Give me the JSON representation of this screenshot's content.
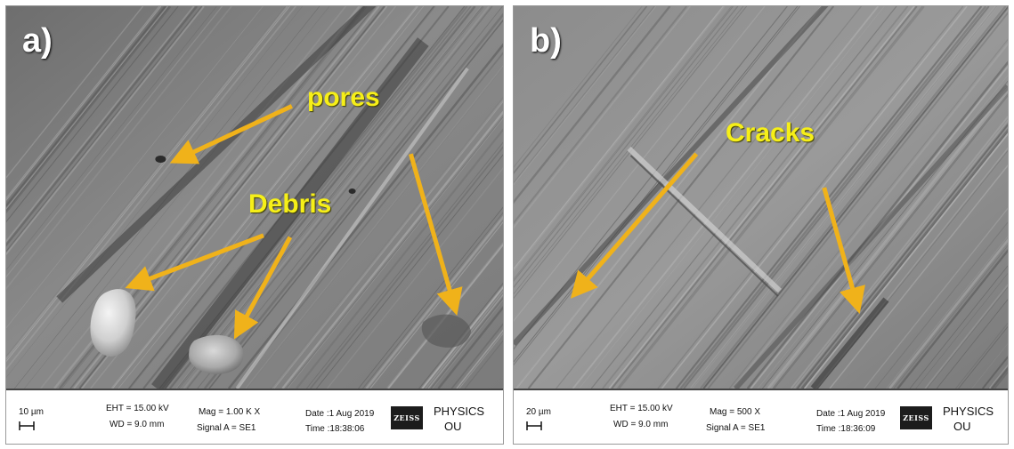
{
  "panels": [
    {
      "letter": "a)",
      "callouts": {
        "pores": "pores",
        "debris": "Debris"
      },
      "databar": {
        "scale": "10 µm",
        "eht": "EHT = 15.00 kV",
        "wd": "WD = 9.0 mm",
        "mag": "Mag =  1.00 K X",
        "signal": "Signal A = SE1",
        "date": "Date :1 Aug 2019",
        "time": "Time :18:38:06",
        "logo": "ZEISS",
        "institution_line1": "PHYSICS",
        "institution_line2": "OU"
      }
    },
    {
      "letter": "b)",
      "callouts": {
        "cracks": "Cracks"
      },
      "databar": {
        "scale": "20 µm",
        "eht": "EHT = 15.00 kV",
        "wd": "WD = 9.0 mm",
        "mag": "Mag =   500 X",
        "signal": "Signal A = SE1",
        "date": "Date :1 Aug 2019",
        "time": "Time :18:36:09",
        "logo": "ZEISS",
        "institution_line1": "PHYSICS",
        "institution_line2": "OU"
      }
    }
  ],
  "colors": {
    "annotation": "#f6ef18",
    "arrow": "#f0b21a"
  }
}
